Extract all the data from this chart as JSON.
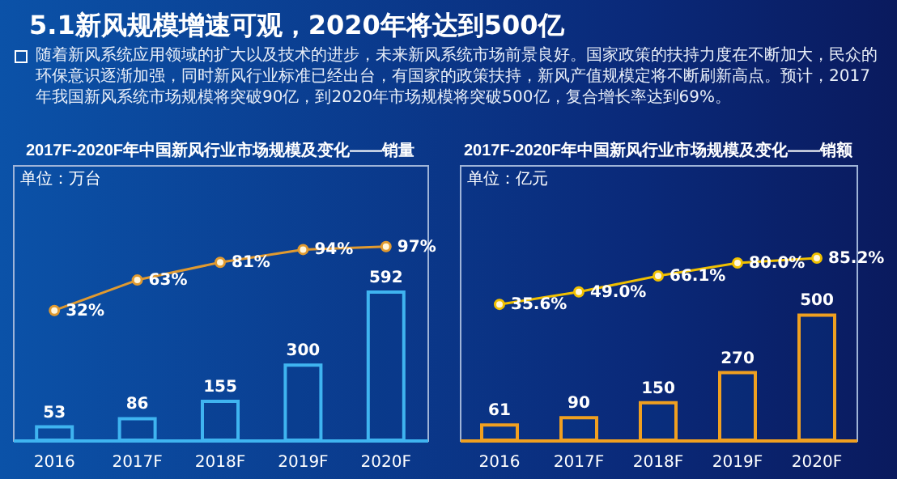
{
  "chart_data": [
    {
      "type": "other",
      "title": "5.1新风规模增速可观，2020年将达到500亿",
      "annotations": [
        "随着新风系统应用领域的扩大以及技术的进步，未来新风系统市场前景良好。国家政策的扶持力度在不断加大，民众的环保意识逐渐加强，同时新风行业标准已经出台，有国家的政策扶持，新风产值规模定将不断刷新高点。预计，2017年我国新风系统市场规模将突破90亿，到2020年市场规模将突破500亿，复合增长率达到69%。"
      ]
    },
    {
      "type": "bar",
      "title": "2017F-2020F年中国新风行业市场规模及变化——销量",
      "ylabel": "单位：万台",
      "categories": [
        "2016",
        "2017F",
        "2018F",
        "2019F",
        "2020F"
      ],
      "ylim": [
        0,
        1100
      ],
      "y2lim": [
        -100,
        180
      ],
      "tick_labels": "x",
      "marker": "circle",
      "series": [
        {
          "type": "bar",
          "color": "#3fb4f0",
          "values": [
            53,
            86,
            155,
            300,
            592
          ],
          "value_labels": [
            "53",
            "86",
            "155",
            "300",
            "592"
          ]
        },
        {
          "type": "line",
          "axis": "y2",
          "color": "#e09a30",
          "values": [
            32,
            63,
            81,
            94,
            97
          ],
          "value_labels": [
            "32%",
            "63%",
            "81%",
            "94%",
            "97%"
          ]
        }
      ]
    },
    {
      "type": "bar",
      "title": "2017F-2020F年中国新风行业市场规模及变化——销额",
      "ylabel": "单位：亿元",
      "categories": [
        "2016",
        "2017F",
        "2018F",
        "2019F",
        "2020F"
      ],
      "ylim": [
        0,
        1100
      ],
      "y2lim": [
        -110,
        185
      ],
      "tick_labels": "x",
      "marker": "circle",
      "series": [
        {
          "type": "bar",
          "color": "#f0a020",
          "values": [
            61,
            90,
            150,
            270,
            500
          ],
          "value_labels": [
            "61",
            "90",
            "150",
            "270",
            "500"
          ]
        },
        {
          "type": "line",
          "axis": "y2",
          "color": "#f0c000",
          "values": [
            35.6,
            49.0,
            66.1,
            80.0,
            85.2
          ],
          "value_labels": [
            "35.6%",
            "49.0%",
            "66.1%",
            "80.0%",
            "85.2%"
          ]
        }
      ]
    }
  ]
}
